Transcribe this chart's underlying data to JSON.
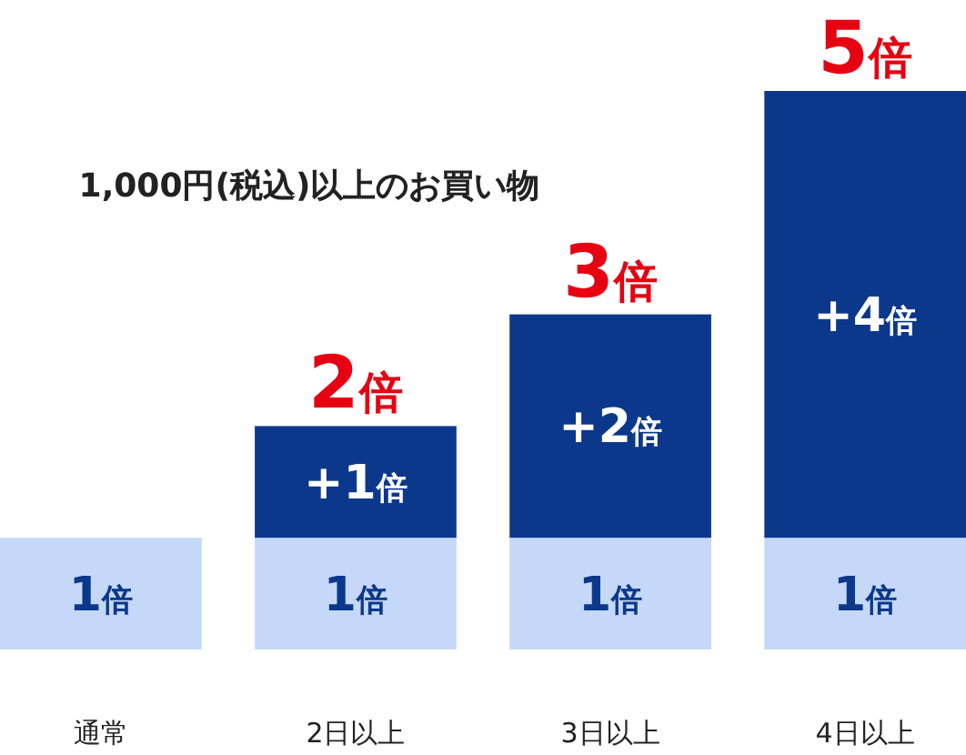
{
  "chart_data": {
    "type": "bar",
    "stacked": true,
    "title": "1,000円(税込)以上のお買い物",
    "categories": [
      "通常",
      "2日以上",
      "3日以上",
      "4日以上"
    ],
    "series": [
      {
        "color": "#c5d8f7",
        "values": [
          1,
          1,
          1,
          1
        ],
        "value_labels": [
          "1倍",
          "1倍",
          "1倍",
          "1倍"
        ]
      },
      {
        "color": "#0c388c",
        "values": [
          null,
          1,
          2,
          4
        ],
        "value_labels": [
          null,
          "+1倍",
          "+2倍",
          "+4倍"
        ]
      }
    ],
    "totals": [
      null,
      "2倍",
      "3倍",
      "5倍"
    ]
  }
}
